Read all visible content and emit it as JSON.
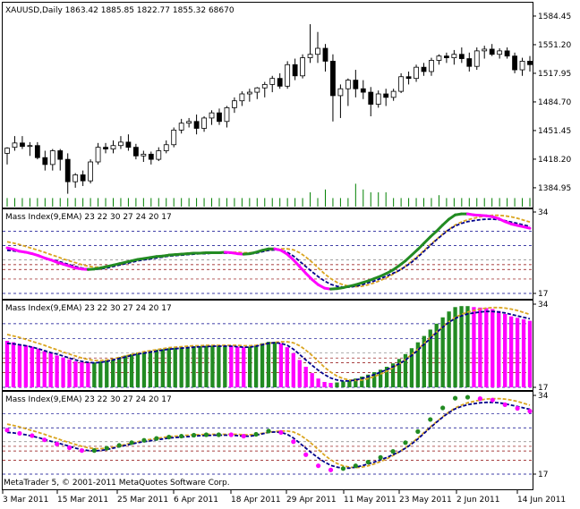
{
  "window": {
    "symbol_header": "XAUUSD,Daily  1863.42 1885.85 1822.77 1855.32  68670",
    "copyright": "MetaTrader 5, © 2001-2011 MetaQuotes Software Corp."
  },
  "colors": {
    "bull_body": "#ffffff",
    "bear_body": "#000000",
    "volume": "#008000",
    "rising": "#228b22",
    "falling": "#ff00ff",
    "signal": "#00008b",
    "ema_orange": "#daa520",
    "level_red": "#8b0000",
    "level_blue": "#00008b",
    "level_gray": "#808080"
  },
  "chart_data": [
    {
      "type": "candlestick",
      "header": "XAUUSD,Daily  1863.42 1885.85 1822.77 1855.32  68670",
      "y_ticks": [
        "1584.45",
        "1551.20",
        "1517.95",
        "1484.70",
        "1451.45",
        "1418.20",
        "1384.95"
      ],
      "ylim": [
        1362,
        1600
      ],
      "candles": [
        {
          "o": 1425,
          "h": 1432,
          "l": 1412,
          "c": 1431
        },
        {
          "o": 1432,
          "h": 1445,
          "l": 1428,
          "c": 1437
        },
        {
          "o": 1437,
          "h": 1445,
          "l": 1430,
          "c": 1433
        },
        {
          "o": 1433,
          "h": 1438,
          "l": 1422,
          "c": 1434
        },
        {
          "o": 1434,
          "h": 1438,
          "l": 1418,
          "c": 1420
        },
        {
          "o": 1420,
          "h": 1428,
          "l": 1405,
          "c": 1412
        },
        {
          "o": 1412,
          "h": 1430,
          "l": 1405,
          "c": 1428
        },
        {
          "o": 1428,
          "h": 1430,
          "l": 1405,
          "c": 1418
        },
        {
          "o": 1418,
          "h": 1425,
          "l": 1378,
          "c": 1392
        },
        {
          "o": 1392,
          "h": 1402,
          "l": 1385,
          "c": 1400
        },
        {
          "o": 1400,
          "h": 1405,
          "l": 1387,
          "c": 1393
        },
        {
          "o": 1393,
          "h": 1418,
          "l": 1390,
          "c": 1415
        },
        {
          "o": 1415,
          "h": 1437,
          "l": 1412,
          "c": 1432
        },
        {
          "o": 1432,
          "h": 1437,
          "l": 1425,
          "c": 1430
        },
        {
          "o": 1430,
          "h": 1440,
          "l": 1425,
          "c": 1434
        },
        {
          "o": 1434,
          "h": 1445,
          "l": 1430,
          "c": 1438
        },
        {
          "o": 1438,
          "h": 1447,
          "l": 1428,
          "c": 1432
        },
        {
          "o": 1432,
          "h": 1436,
          "l": 1418,
          "c": 1422
        },
        {
          "o": 1422,
          "h": 1428,
          "l": 1415,
          "c": 1424
        },
        {
          "o": 1424,
          "h": 1427,
          "l": 1412,
          "c": 1418
        },
        {
          "o": 1418,
          "h": 1432,
          "l": 1416,
          "c": 1428
        },
        {
          "o": 1428,
          "h": 1440,
          "l": 1425,
          "c": 1435
        },
        {
          "o": 1435,
          "h": 1455,
          "l": 1432,
          "c": 1452
        },
        {
          "o": 1452,
          "h": 1465,
          "l": 1448,
          "c": 1460
        },
        {
          "o": 1460,
          "h": 1466,
          "l": 1455,
          "c": 1462
        },
        {
          "o": 1462,
          "h": 1470,
          "l": 1447,
          "c": 1454
        },
        {
          "o": 1454,
          "h": 1468,
          "l": 1450,
          "c": 1466
        },
        {
          "o": 1466,
          "h": 1475,
          "l": 1458,
          "c": 1472
        },
        {
          "o": 1472,
          "h": 1477,
          "l": 1458,
          "c": 1462
        },
        {
          "o": 1462,
          "h": 1480,
          "l": 1455,
          "c": 1478
        },
        {
          "o": 1478,
          "h": 1490,
          "l": 1472,
          "c": 1486
        },
        {
          "o": 1486,
          "h": 1497,
          "l": 1480,
          "c": 1494
        },
        {
          "o": 1494,
          "h": 1500,
          "l": 1485,
          "c": 1496
        },
        {
          "o": 1496,
          "h": 1502,
          "l": 1488,
          "c": 1501
        },
        {
          "o": 1501,
          "h": 1508,
          "l": 1490,
          "c": 1505
        },
        {
          "o": 1505,
          "h": 1515,
          "l": 1496,
          "c": 1512
        },
        {
          "o": 1512,
          "h": 1518,
          "l": 1500,
          "c": 1503
        },
        {
          "o": 1503,
          "h": 1532,
          "l": 1500,
          "c": 1528
        },
        {
          "o": 1528,
          "h": 1535,
          "l": 1510,
          "c": 1515
        },
        {
          "o": 1515,
          "h": 1540,
          "l": 1512,
          "c": 1536
        },
        {
          "o": 1536,
          "h": 1575,
          "l": 1530,
          "c": 1540
        },
        {
          "o": 1540,
          "h": 1566,
          "l": 1530,
          "c": 1547
        },
        {
          "o": 1547,
          "h": 1552,
          "l": 1520,
          "c": 1532
        },
        {
          "o": 1532,
          "h": 1540,
          "l": 1462,
          "c": 1492
        },
        {
          "o": 1492,
          "h": 1505,
          "l": 1466,
          "c": 1500
        },
        {
          "o": 1500,
          "h": 1512,
          "l": 1480,
          "c": 1510
        },
        {
          "o": 1510,
          "h": 1522,
          "l": 1490,
          "c": 1500
        },
        {
          "o": 1500,
          "h": 1510,
          "l": 1488,
          "c": 1496
        },
        {
          "o": 1496,
          "h": 1502,
          "l": 1468,
          "c": 1482
        },
        {
          "o": 1482,
          "h": 1498,
          "l": 1478,
          "c": 1494
        },
        {
          "o": 1494,
          "h": 1500,
          "l": 1480,
          "c": 1490
        },
        {
          "o": 1490,
          "h": 1500,
          "l": 1486,
          "c": 1497
        },
        {
          "o": 1497,
          "h": 1518,
          "l": 1495,
          "c": 1514
        },
        {
          "o": 1514,
          "h": 1520,
          "l": 1505,
          "c": 1512
        },
        {
          "o": 1512,
          "h": 1528,
          "l": 1508,
          "c": 1525
        },
        {
          "o": 1525,
          "h": 1530,
          "l": 1515,
          "c": 1520
        },
        {
          "o": 1520,
          "h": 1536,
          "l": 1515,
          "c": 1533
        },
        {
          "o": 1533,
          "h": 1540,
          "l": 1528,
          "c": 1538
        },
        {
          "o": 1538,
          "h": 1542,
          "l": 1530,
          "c": 1536
        },
        {
          "o": 1536,
          "h": 1545,
          "l": 1528,
          "c": 1540
        },
        {
          "o": 1540,
          "h": 1548,
          "l": 1530,
          "c": 1535
        },
        {
          "o": 1535,
          "h": 1542,
          "l": 1520,
          "c": 1526
        },
        {
          "o": 1526,
          "h": 1548,
          "l": 1522,
          "c": 1544
        },
        {
          "o": 1544,
          "h": 1550,
          "l": 1535,
          "c": 1546
        },
        {
          "o": 1546,
          "h": 1552,
          "l": 1538,
          "c": 1540
        },
        {
          "o": 1540,
          "h": 1547,
          "l": 1535,
          "c": 1544
        },
        {
          "o": 1544,
          "h": 1548,
          "l": 1535,
          "c": 1538
        },
        {
          "o": 1538,
          "h": 1542,
          "l": 1518,
          "c": 1522
        },
        {
          "o": 1522,
          "h": 1536,
          "l": 1515,
          "c": 1532
        },
        {
          "o": 1532,
          "h": 1538,
          "l": 1520,
          "c": 1528
        }
      ],
      "volumes": [
        3,
        3,
        3,
        3,
        3,
        3,
        3,
        3,
        3,
        3,
        3,
        3,
        3,
        3,
        3,
        3,
        3,
        3,
        3,
        3,
        3,
        3,
        3,
        3,
        3,
        3,
        3,
        3,
        3,
        3,
        3,
        3,
        3,
        3,
        3,
        3,
        3,
        3,
        3,
        3,
        5,
        3,
        6,
        3,
        3,
        3,
        8,
        6,
        5,
        5,
        5,
        3,
        3,
        3,
        3,
        3,
        3,
        4,
        3,
        3,
        3,
        3,
        3,
        3,
        3,
        3,
        3,
        3,
        3,
        3
      ]
    },
    {
      "type": "line",
      "title": "Mass Index(9,EMA) 23 22 30 27 24 20 17",
      "ylim": [
        17,
        34
      ],
      "y_ticks": [
        "34",
        "17"
      ],
      "levels": [
        23,
        22,
        30,
        27,
        24,
        20,
        17
      ],
      "mass_index": [
        26.5,
        26.2,
        25.8,
        25.6,
        25.3,
        24.9,
        24.4,
        24.0,
        23.5,
        23.1,
        22.7,
        22.3,
        22.1,
        22.0,
        22.1,
        22.3,
        22.6,
        22.9,
        23.2,
        23.5,
        23.8,
        24.1,
        24.3,
        24.5,
        24.7,
        24.8,
        25.0,
        25.1,
        25.2,
        25.3,
        25.4,
        25.4,
        25.5,
        25.5,
        25.5,
        25.6,
        25.5,
        25.3,
        25.2,
        25.3,
        25.6,
        26.0,
        26.3,
        26.3,
        26.0,
        25.2,
        24.0,
        22.6,
        21.2,
        19.9,
        18.8,
        18.1,
        17.9,
        18.0,
        18.2,
        18.5,
        18.8,
        19.2,
        19.6,
        20.1,
        20.6,
        21.2,
        21.9,
        22.8,
        23.8,
        25.0,
        26.2,
        27.5,
        28.8,
        30.0,
        31.3,
        32.5,
        33.4,
        33.6,
        33.6,
        33.4,
        33.3,
        33.2,
        33.0,
        32.6,
        32.0,
        31.5,
        31.2,
        30.9,
        30.6
      ],
      "signal": [
        26.0,
        25.9,
        25.7,
        25.5,
        25.2,
        24.9,
        24.5,
        24.1,
        23.8,
        23.4,
        23.0,
        22.6,
        22.3,
        22.1,
        22.0,
        22.1,
        22.3,
        22.6,
        22.9,
        23.2,
        23.5,
        23.8,
        24.0,
        24.2,
        24.4,
        24.6,
        24.8,
        24.9,
        25.0,
        25.1,
        25.2,
        25.3,
        25.3,
        25.4,
        25.4,
        25.4,
        25.4,
        25.3,
        25.2,
        25.2,
        25.4,
        25.7,
        26.0,
        26.1,
        26.0,
        25.6,
        24.8,
        23.7,
        22.6,
        21.5,
        20.5,
        19.6,
        18.9,
        18.5,
        18.3,
        18.3,
        18.5,
        18.8,
        19.2,
        19.6,
        20.1,
        20.6,
        21.2,
        21.8,
        22.6,
        23.5,
        24.6,
        25.8,
        27.0,
        28.2,
        29.3,
        30.3,
        31.1,
        31.6,
        32.0,
        32.2,
        32.4,
        32.5,
        32.5,
        32.4,
        32.2,
        31.9,
        31.6,
        31.3,
        31.0
      ],
      "ema": [
        27.8,
        27.5,
        27.2,
        26.8,
        26.4,
        26.0,
        25.6,
        25.1,
        24.7,
        24.2,
        23.8,
        23.4,
        23.0,
        22.7,
        22.5,
        22.5,
        22.6,
        22.8,
        23.1,
        23.4,
        23.7,
        24.0,
        24.3,
        24.5,
        24.7,
        24.9,
        25.1,
        25.2,
        25.3,
        25.4,
        25.5,
        25.5,
        25.6,
        25.6,
        25.6,
        25.6,
        25.6,
        25.6,
        25.5,
        25.5,
        25.6,
        25.8,
        26.0,
        26.2,
        26.3,
        26.3,
        26.1,
        25.5,
        24.6,
        23.5,
        22.3,
        21.1,
        20.1,
        19.3,
        18.8,
        18.5,
        18.4,
        18.5,
        18.8,
        19.2,
        19.7,
        20.3,
        21.0,
        21.8,
        22.7,
        23.7,
        24.8,
        26.0,
        27.2,
        28.3,
        29.4,
        30.4,
        31.3,
        31.9,
        32.4,
        32.7,
        33.0,
        33.2,
        33.3,
        33.3,
        33.2,
        33.0,
        32.7,
        32.3,
        31.9
      ]
    }
  ],
  "x_axis": [
    "3 Mar 2011",
    "15 Mar 2011",
    "25 Mar 2011",
    "6 Apr 2011",
    "18 Apr 2011",
    "29 Apr 2011",
    "11 May 2011",
    "23 May 2011",
    "2 Jun 2011",
    "14 Jun 2011"
  ]
}
